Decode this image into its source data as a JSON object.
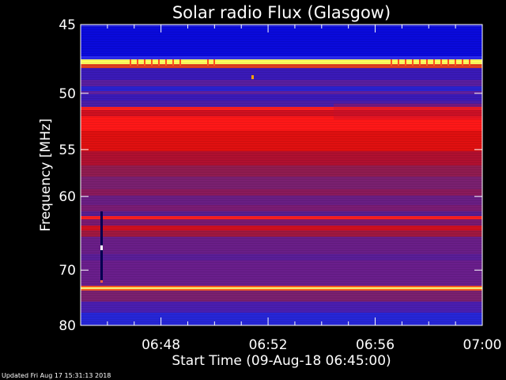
{
  "chart_data": {
    "type": "heatmap",
    "title": "Solar radio Flux (Glasgow)",
    "xlabel": "Start Time (09-Aug-18 06:45:00)",
    "ylabel": "Frequency [MHz]",
    "x_ticks": [
      "06:48",
      "06:52",
      "06:56",
      "07:00"
    ],
    "x_tick_minutes": [
      3,
      7,
      11,
      15
    ],
    "x_range_minutes": [
      0,
      15
    ],
    "y_ticks": [
      45,
      50,
      55,
      60,
      70,
      80
    ],
    "y_range": [
      45,
      80
    ],
    "y_scale": "reciprocal",
    "colormap": [
      "#0000c8",
      "#4a1fa8",
      "#7a2090",
      "#b01440",
      "#ff1010",
      "#ff8000",
      "#ffff80",
      "#ffffff"
    ],
    "grid": false
  },
  "footer": {
    "updated": "Updated Fri Aug 17 15:31:13 2018"
  }
}
